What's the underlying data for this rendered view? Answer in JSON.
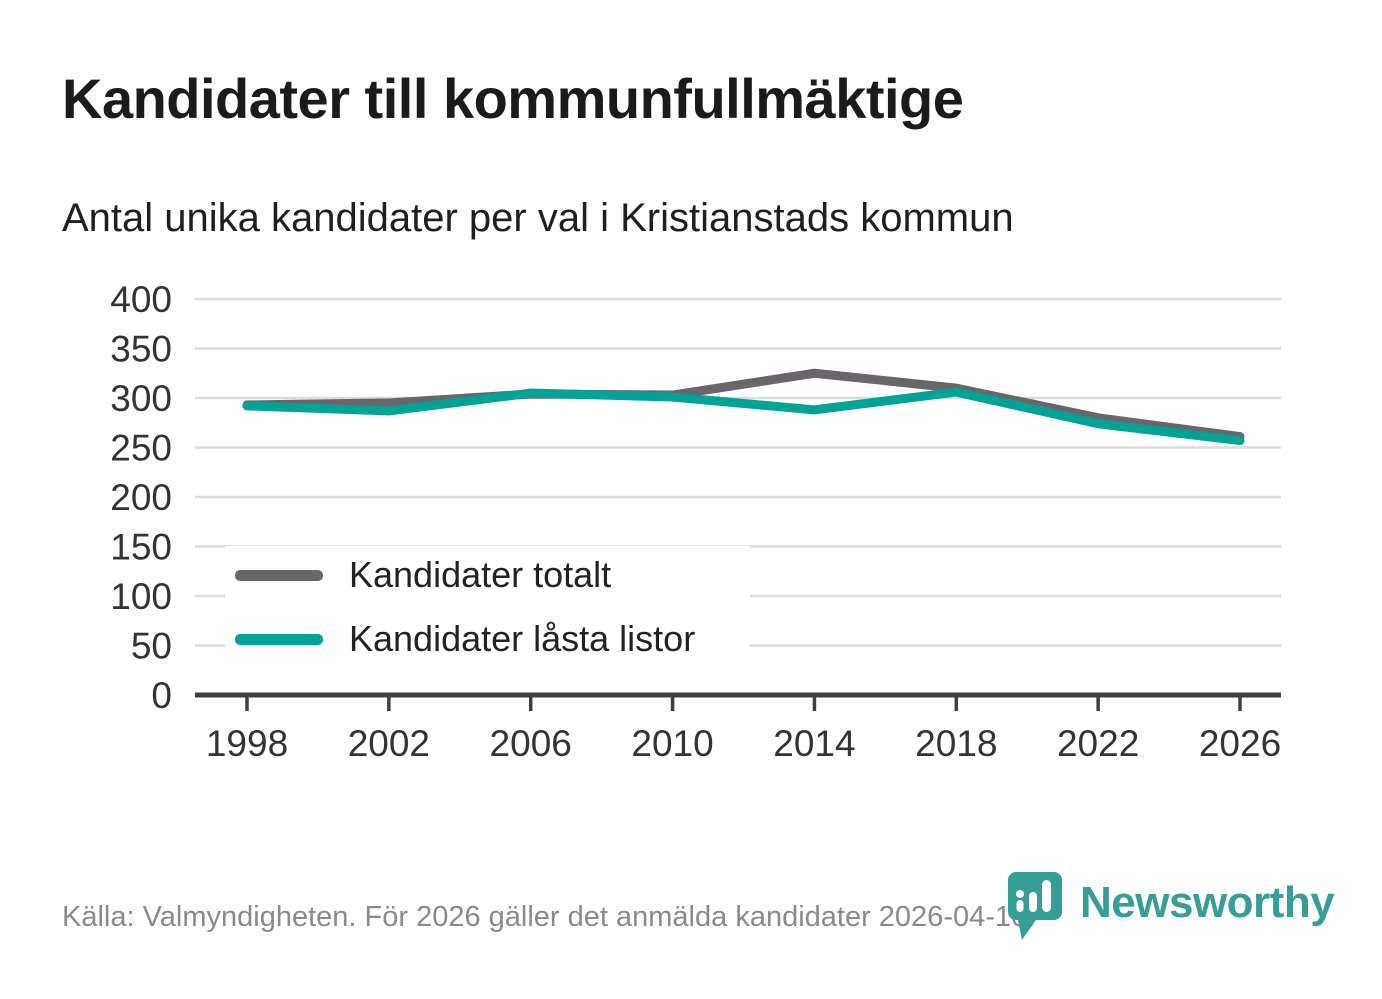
{
  "title": "Kandidater till kommunfullmäktige",
  "subtitle": "Antal unika kandidater per val i Kristianstads kommun",
  "footer": {
    "source_text": "Källa: Valmyndigheten. För 2026 gäller det anmälda kandidater 2026-04-10."
  },
  "logo": {
    "wordmark": "Newsworthy",
    "icon_name": "newsworthy-pin-chart-icon",
    "color": "#359e97"
  },
  "chart_data": {
    "type": "line",
    "x": [
      1998,
      2002,
      2006,
      2010,
      2014,
      2018,
      2022,
      2026
    ],
    "series": [
      {
        "name": "Kandidater totalt",
        "color": "#69656a",
        "values": [
          293,
          295,
          304,
          303,
          325,
          310,
          280,
          261
        ]
      },
      {
        "name": "Kandidater låsta listor",
        "color": "#00a396",
        "values": [
          292,
          287,
          305,
          301,
          288,
          306,
          274,
          257
        ]
      }
    ],
    "ylim": [
      0,
      400
    ],
    "yticks": [
      0,
      50,
      100,
      150,
      200,
      250,
      300,
      350,
      400
    ],
    "grid": true,
    "legend_position": "inside-left-middle",
    "grid_color": "#dcdcdc",
    "axis_color": "#3f3f3f",
    "tick_label_color": "#333333",
    "line_width": 9
  }
}
